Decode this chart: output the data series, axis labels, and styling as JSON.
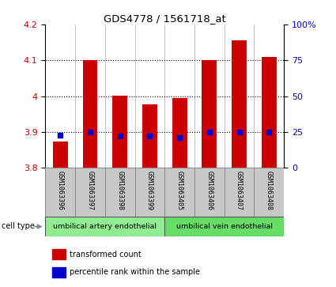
{
  "title": "GDS4778 / 1561718_at",
  "samples": [
    "GSM1063396",
    "GSM1063397",
    "GSM1063398",
    "GSM1063399",
    "GSM1063405",
    "GSM1063406",
    "GSM1063407",
    "GSM1063408"
  ],
  "transformed_count": [
    3.873,
    4.101,
    4.002,
    3.976,
    3.995,
    4.1,
    4.155,
    4.11
  ],
  "percentile_rank": [
    23,
    25,
    22,
    22,
    21,
    25,
    25,
    25
  ],
  "ylim_left": [
    3.8,
    4.2
  ],
  "ylim_right": [
    0,
    100
  ],
  "yticks_left": [
    3.8,
    3.9,
    4.0,
    4.1,
    4.2
  ],
  "ytick_labels_left": [
    "3.8",
    "3.9",
    "4",
    "4.1",
    "4.2"
  ],
  "yticks_right": [
    0,
    25,
    50,
    75,
    100
  ],
  "ytick_labels_right": [
    "0",
    "25",
    "50",
    "75",
    "100%"
  ],
  "grid_yticks": [
    3.9,
    4.0,
    4.1
  ],
  "cell_type_groups": [
    {
      "label": "umbilical artery endothelial",
      "start": 0,
      "end": 4,
      "color": "#90EE90"
    },
    {
      "label": "umbilical vein endothelial",
      "start": 4,
      "end": 8,
      "color": "#66DD66"
    }
  ],
  "bar_color": "#CC0000",
  "square_color": "#0000CC",
  "bar_width": 0.5,
  "background_color": "#ffffff",
  "label_color_left": "#CC0000",
  "label_color_right": "#0000BB",
  "tick_label_bg": "#c8c8c8",
  "legend_red_label": "transformed count",
  "legend_blue_label": "percentile rank within the sample"
}
